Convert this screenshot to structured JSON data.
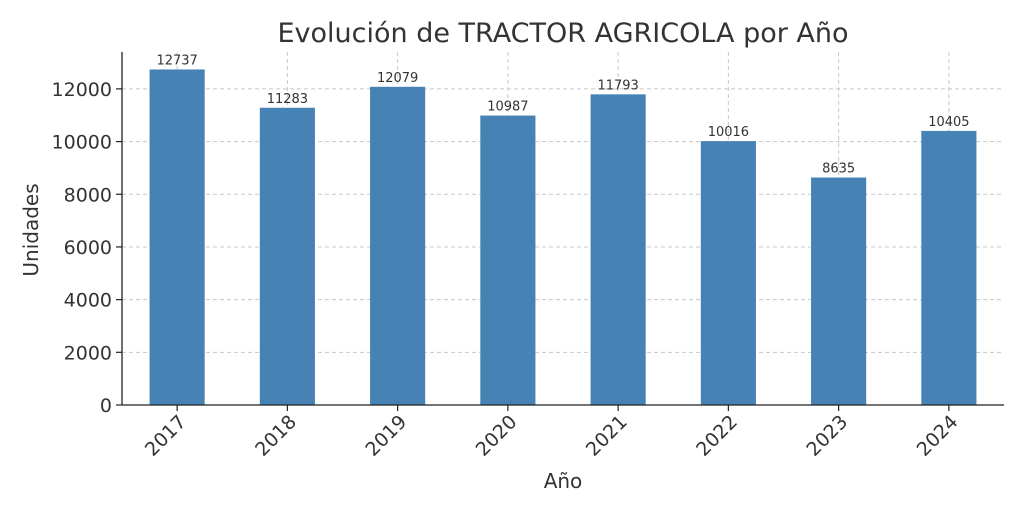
{
  "chart_data": {
    "type": "bar",
    "title": "Evolución de TRACTOR AGRICOLA por Año",
    "xlabel": "Año",
    "ylabel": "Unidades",
    "categories": [
      "2017",
      "2018",
      "2019",
      "2020",
      "2021",
      "2022",
      "2023",
      "2024"
    ],
    "values": [
      12737,
      11283,
      12079,
      10987,
      11793,
      10016,
      8635,
      10405
    ],
    "ylim": [
      0,
      13400
    ],
    "yticks": [
      0,
      2000,
      4000,
      6000,
      8000,
      10000,
      12000
    ],
    "grid": true,
    "bar_color": "#4682b4",
    "show_data_labels": true
  }
}
